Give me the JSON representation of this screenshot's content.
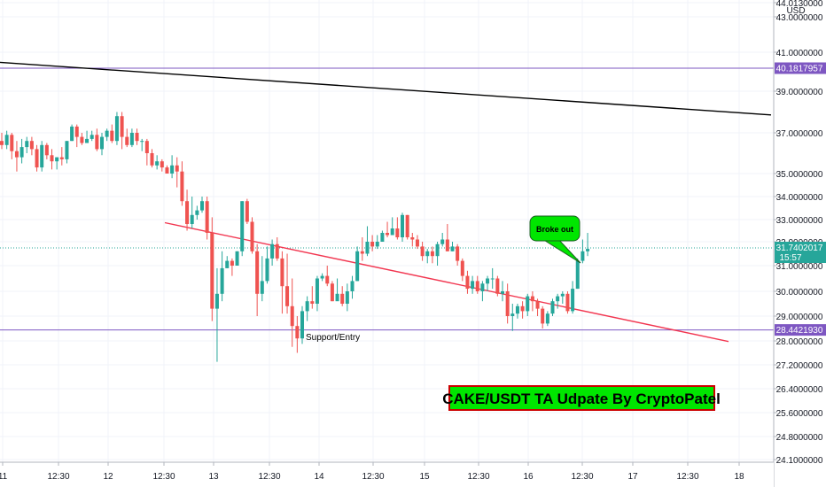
{
  "chart_data": {
    "type": "candlestick",
    "title": "CAKE/USDT TA Udpate By CryptoPatel",
    "currency": "USD",
    "x_tick_labels": [
      "11",
      "12:30",
      "12",
      "12:30",
      "13",
      "12:30",
      "14",
      "12:30",
      "15",
      "12:30",
      "16",
      "12:30",
      "17",
      "12:30",
      "18"
    ],
    "y_tick_labels": [
      "44.0130000",
      "43.0000000",
      "41.0000000",
      "39.0000000",
      "37.0000000",
      "35.0000000",
      "34.0000000",
      "33.0000000",
      "32.0000000",
      "31.0000000",
      "30.0000000",
      "29.0000000",
      "28.0000000",
      "27.2000000",
      "26.4000000",
      "25.6000000",
      "24.8000000",
      "24.1000000"
    ],
    "price_badges": [
      {
        "label": "40.1817957",
        "price": 40.1817957,
        "color": "#7e57c2"
      },
      {
        "label": "31.7402017",
        "sub": "15:57",
        "price": 31.7402017,
        "color": "#26a69a"
      },
      {
        "label": "28.4421930",
        "price": 28.442193,
        "color": "#7e57c2"
      }
    ],
    "horizontal_lines": [
      {
        "price": 40.1817957,
        "color": "#7e57c2"
      },
      {
        "price": 28.442193,
        "color": "#7e57c2"
      },
      {
        "price": 31.7402017,
        "color": "#26a69a",
        "dotted": true
      }
    ],
    "trend_lines": [
      {
        "from": [
          0,
          40.48
        ],
        "to": [
          870,
          37.86
        ],
        "color": "#000000"
      },
      {
        "from": [
          186,
          32.86
        ],
        "to": [
          822,
          27.98
        ],
        "color": "#f23650"
      }
    ],
    "annotations": {
      "breakout": "Broke out",
      "support": "Support/Entry"
    },
    "candles": [
      [
        36.6,
        36.4,
        37.0,
        36.2
      ],
      [
        36.4,
        36.9,
        37.1,
        36.2
      ],
      [
        36.9,
        36.1,
        37.0,
        35.7
      ],
      [
        36.1,
        35.8,
        36.6,
        35.1
      ],
      [
        35.8,
        36.3,
        36.7,
        35.5
      ],
      [
        36.3,
        36.6,
        36.8,
        36.0
      ],
      [
        36.6,
        36.2,
        36.8,
        35.9
      ],
      [
        36.2,
        35.3,
        36.4,
        35.1
      ],
      [
        35.3,
        36.4,
        36.6,
        35.1
      ],
      [
        36.4,
        35.9,
        36.5,
        35.7
      ],
      [
        35.9,
        35.6,
        36.2,
        35.2
      ],
      [
        35.6,
        35.8,
        35.8,
        35.2
      ],
      [
        35.8,
        35.7,
        36.3,
        35.4
      ],
      [
        35.7,
        36.6,
        36.6,
        35.5
      ],
      [
        36.6,
        37.3,
        37.4,
        36.6
      ],
      [
        37.3,
        36.8,
        37.4,
        36.3
      ],
      [
        36.8,
        36.5,
        37.0,
        36.4
      ],
      [
        36.5,
        36.7,
        37.1,
        36.5
      ],
      [
        36.7,
        36.9,
        37.1,
        36.6
      ],
      [
        36.9,
        36.2,
        37.2,
        36.1
      ],
      [
        36.2,
        36.8,
        37.0,
        35.9
      ],
      [
        36.8,
        37.1,
        37.2,
        36.6
      ],
      [
        37.1,
        36.6,
        37.4,
        36.5
      ],
      [
        36.6,
        37.8,
        38.0,
        36.4
      ],
      [
        37.8,
        36.8,
        38.0,
        36.2
      ],
      [
        36.8,
        36.4,
        37.2,
        36.3
      ],
      [
        36.4,
        37.0,
        37.2,
        36.3
      ],
      [
        37.0,
        36.6,
        37.2,
        36.4
      ],
      [
        36.6,
        36.6,
        36.7,
        36.1
      ],
      [
        36.6,
        36.0,
        36.7,
        35.4
      ],
      [
        36.0,
        35.4,
        36.2,
        35.3
      ],
      [
        35.4,
        35.6,
        35.9,
        35.2
      ],
      [
        35.6,
        35.3,
        35.7,
        35.1
      ],
      [
        35.3,
        35.0,
        35.4,
        35.0
      ],
      [
        35.0,
        35.4,
        35.9,
        34.8
      ],
      [
        35.4,
        35.1,
        35.8,
        34.4
      ],
      [
        35.1,
        33.8,
        35.6,
        33.6
      ],
      [
        33.8,
        32.8,
        34.3,
        32.5
      ],
      [
        32.8,
        33.2,
        34.0,
        32.6
      ],
      [
        33.2,
        33.4,
        33.6,
        33.0
      ],
      [
        33.4,
        33.8,
        34.0,
        33.3
      ],
      [
        33.8,
        32.4,
        34.0,
        32.1
      ],
      [
        32.4,
        29.3,
        33.1,
        28.8
      ],
      [
        29.3,
        29.9,
        30.9,
        27.3
      ],
      [
        29.9,
        30.9,
        31.6,
        29.6
      ],
      [
        30.9,
        31.2,
        31.4,
        30.9
      ],
      [
        31.2,
        31.0,
        31.3,
        30.6
      ],
      [
        31.0,
        31.6,
        31.6,
        31.0
      ],
      [
        31.6,
        33.8,
        33.8,
        31.4
      ],
      [
        33.8,
        32.9,
        33.9,
        32.8
      ],
      [
        32.9,
        31.6,
        33.1,
        31.5
      ],
      [
        31.6,
        29.9,
        31.9,
        29.0
      ],
      [
        29.9,
        30.4,
        31.4,
        29.6
      ],
      [
        30.4,
        31.3,
        31.8,
        30.3
      ],
      [
        31.3,
        31.9,
        32.1,
        31.0
      ],
      [
        31.9,
        31.3,
        32.2,
        31.2
      ],
      [
        31.3,
        30.2,
        31.6,
        29.1
      ],
      [
        30.2,
        29.4,
        31.5,
        29.1
      ],
      [
        29.4,
        28.6,
        30.5,
        27.8
      ],
      [
        28.6,
        28.1,
        29.0,
        27.6
      ],
      [
        28.1,
        29.2,
        29.4,
        27.9
      ],
      [
        29.2,
        29.6,
        29.8,
        28.8
      ],
      [
        29.6,
        29.5,
        30.2,
        29.3
      ],
      [
        29.5,
        30.5,
        30.6,
        29.2
      ],
      [
        30.5,
        30.6,
        30.7,
        30.4
      ],
      [
        30.6,
        30.3,
        31.0,
        30.2
      ],
      [
        30.3,
        29.6,
        30.4,
        29.6
      ],
      [
        29.6,
        29.9,
        30.5,
        29.7
      ],
      [
        29.9,
        29.5,
        30.2,
        29.4
      ],
      [
        29.5,
        30.0,
        30.3,
        29.2
      ],
      [
        30.0,
        30.4,
        30.6,
        29.7
      ],
      [
        30.4,
        31.6,
        31.8,
        30.4
      ],
      [
        31.6,
        31.5,
        32.2,
        31.2
      ],
      [
        31.5,
        32.0,
        32.7,
        31.4
      ],
      [
        32.0,
        31.8,
        32.3,
        31.6
      ],
      [
        31.8,
        32.0,
        32.3,
        31.7
      ],
      [
        32.0,
        32.4,
        32.5,
        32.0
      ],
      [
        32.4,
        32.3,
        32.9,
        32.2
      ],
      [
        32.3,
        32.6,
        33.1,
        32.3
      ],
      [
        32.6,
        32.2,
        33.1,
        32.1
      ],
      [
        32.2,
        33.2,
        33.3,
        32.0
      ],
      [
        33.2,
        32.2,
        33.2,
        32.1
      ],
      [
        32.2,
        32.1,
        32.4,
        31.8
      ],
      [
        32.1,
        31.8,
        32.3,
        31.7
      ],
      [
        31.8,
        31.4,
        32.0,
        31.2
      ],
      [
        31.4,
        31.6,
        31.7,
        31.1
      ],
      [
        31.6,
        31.4,
        31.8,
        31.1
      ],
      [
        31.4,
        31.9,
        32.0,
        31.0
      ],
      [
        31.9,
        32.1,
        32.4,
        31.8
      ],
      [
        32.1,
        31.6,
        32.8,
        31.6
      ],
      [
        31.6,
        31.8,
        32.0,
        31.6
      ],
      [
        31.8,
        31.2,
        31.9,
        31.0
      ],
      [
        31.2,
        30.6,
        31.3,
        30.4
      ],
      [
        30.6,
        30.1,
        30.8,
        29.9
      ],
      [
        30.1,
        30.4,
        30.6,
        29.9
      ],
      [
        30.4,
        30.0,
        30.6,
        29.9
      ],
      [
        30.0,
        30.3,
        30.4,
        29.6
      ],
      [
        30.3,
        30.5,
        30.6,
        30.0
      ],
      [
        30.5,
        30.5,
        30.9,
        30.1
      ],
      [
        30.5,
        29.9,
        30.6,
        29.8
      ],
      [
        29.9,
        30.0,
        30.4,
        29.6
      ],
      [
        30.0,
        29.0,
        30.3,
        28.7
      ],
      [
        29.0,
        29.1,
        29.5,
        28.4
      ],
      [
        29.1,
        29.4,
        29.5,
        28.9
      ],
      [
        29.4,
        29.2,
        29.6,
        28.9
      ],
      [
        29.2,
        29.8,
        29.9,
        29.0
      ],
      [
        29.8,
        29.6,
        30.0,
        29.2
      ],
      [
        29.6,
        29.3,
        29.7,
        29.0
      ],
      [
        29.3,
        28.7,
        29.4,
        28.5
      ],
      [
        28.7,
        29.1,
        29.2,
        28.6
      ],
      [
        29.1,
        29.6,
        29.7,
        29.0
      ],
      [
        29.6,
        29.8,
        29.9,
        29.3
      ],
      [
        29.8,
        29.9,
        30.0,
        29.5
      ],
      [
        29.9,
        29.2,
        30.0,
        29.1
      ],
      [
        29.2,
        30.1,
        30.4,
        29.1
      ],
      [
        30.1,
        31.2,
        31.3,
        30.1
      ],
      [
        31.2,
        31.6,
        32.1,
        31.1
      ],
      [
        31.6,
        31.7,
        32.4,
        31.4
      ]
    ]
  }
}
